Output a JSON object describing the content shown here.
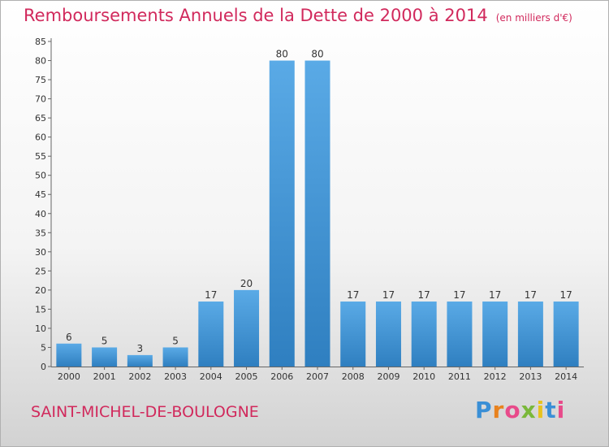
{
  "header": {
    "title": "Remboursements Annuels de la Dette de 2000 à 2014",
    "unit": "(en milliers d'€)"
  },
  "footer": {
    "commune": "SAINT-MICHEL-DE-BOULOGNE",
    "logo": "Proxiti"
  },
  "colors": {
    "accent": "#d1295c",
    "bar_light": "#5aaae6",
    "bar_dark": "#2f7fc0"
  },
  "chart_data": {
    "type": "bar",
    "title": "Remboursements Annuels de la Dette de 2000 à 2014",
    "categories": [
      "2000",
      "2001",
      "2002",
      "2003",
      "2004",
      "2005",
      "2006",
      "2007",
      "2008",
      "2009",
      "2010",
      "2011",
      "2012",
      "2013",
      "2014"
    ],
    "values": [
      6,
      5,
      3,
      5,
      17,
      20,
      80,
      80,
      17,
      17,
      17,
      17,
      17,
      17,
      17
    ],
    "ylim": [
      0,
      85
    ],
    "yticks": [
      0,
      5,
      10,
      15,
      20,
      25,
      30,
      35,
      40,
      45,
      50,
      55,
      60,
      65,
      70,
      75,
      80,
      85
    ],
    "grid": false,
    "legend": "none"
  }
}
